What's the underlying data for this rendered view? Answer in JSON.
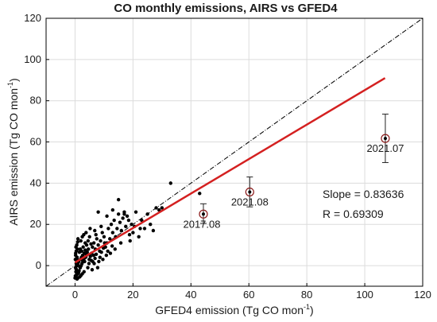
{
  "chart_data": {
    "type": "scatter",
    "title": "CO monthly emissions, AIRS vs GFED4",
    "xlabel": "GFED4 emission (Tg CO mon",
    "ylabel": "AIRS emission (Tg CO mon",
    "label_exponent": "-1",
    "label_close": ")",
    "xlim": [
      -10,
      120
    ],
    "ylim": [
      -10,
      120
    ],
    "xticks": [
      0,
      20,
      40,
      60,
      80,
      100,
      120
    ],
    "yticks": [
      0,
      20,
      40,
      60,
      80,
      100,
      120
    ],
    "grid": true,
    "one_to_one_line": {
      "from": [
        -10,
        -10
      ],
      "to": [
        120,
        120
      ],
      "color": "#000000",
      "style": "dash-dot"
    },
    "regression_line": {
      "from": [
        0,
        1.5
      ],
      "to": [
        107,
        91
      ],
      "color": "#d42020",
      "slope": 0.83636,
      "r": 0.69309
    },
    "stats_text": [
      "Slope = 0.83636",
      "R = 0.69309"
    ],
    "points_color": "#000000",
    "points": [
      [
        0.1,
        -5
      ],
      [
        0.3,
        -3
      ],
      [
        0.5,
        -2
      ],
      [
        0.2,
        -1
      ],
      [
        0.6,
        0
      ],
      [
        0.4,
        1
      ],
      [
        0.8,
        2
      ],
      [
        0.1,
        3
      ],
      [
        0.7,
        4
      ],
      [
        0.2,
        5
      ],
      [
        0.9,
        -4
      ],
      [
        0.5,
        -4.5
      ],
      [
        1.2,
        -3.5
      ],
      [
        1.4,
        -2.5
      ],
      [
        0.3,
        -1.5
      ],
      [
        1.6,
        -0.5
      ],
      [
        0.9,
        0.5
      ],
      [
        1.1,
        1.5
      ],
      [
        1.3,
        2.5
      ],
      [
        0.6,
        3.5
      ],
      [
        1.8,
        -1
      ],
      [
        2.1,
        0
      ],
      [
        2.4,
        1
      ],
      [
        2.7,
        2
      ],
      [
        1.9,
        3
      ],
      [
        2.2,
        4
      ],
      [
        2.6,
        5
      ],
      [
        3.0,
        3
      ],
      [
        3.3,
        2
      ],
      [
        3.6,
        4
      ],
      [
        0.2,
        6
      ],
      [
        0.4,
        7
      ],
      [
        0.8,
        8
      ],
      [
        0.3,
        9
      ],
      [
        0.6,
        10
      ],
      [
        0.9,
        11.5
      ],
      [
        1.5,
        6.5
      ],
      [
        1.8,
        8
      ],
      [
        2.3,
        7
      ],
      [
        2.8,
        9
      ],
      [
        3.2,
        6
      ],
      [
        3.5,
        7.5
      ],
      [
        3.9,
        5
      ],
      [
        4.2,
        6.5
      ],
      [
        4.6,
        8
      ],
      [
        4.9,
        3
      ],
      [
        5.3,
        4.5
      ],
      [
        5.7,
        6
      ],
      [
        6.1,
        2
      ],
      [
        6.4,
        5
      ],
      [
        4.0,
        10
      ],
      [
        4.5,
        12
      ],
      [
        5.0,
        14
      ],
      [
        5.5,
        10.5
      ],
      [
        6.0,
        9
      ],
      [
        6.5,
        11
      ],
      [
        7.0,
        8
      ],
      [
        7.5,
        13
      ],
      [
        8.0,
        10
      ],
      [
        8.5,
        7
      ],
      [
        2.0,
        12
      ],
      [
        2.5,
        14
      ],
      [
        3.0,
        15
      ],
      [
        3.5,
        11
      ],
      [
        1.0,
        13
      ],
      [
        7.2,
        15
      ],
      [
        8.8,
        12
      ],
      [
        9.4,
        16
      ],
      [
        10.0,
        14
      ],
      [
        10.5,
        9
      ],
      [
        11.0,
        11
      ],
      [
        11.5,
        18
      ],
      [
        12.0,
        13
      ],
      [
        12.5,
        20
      ],
      [
        13.0,
        16
      ],
      [
        13.5,
        22
      ],
      [
        14.0,
        14
      ],
      [
        14.5,
        18
      ],
      [
        15.0,
        25
      ],
      [
        15.5,
        21
      ],
      [
        16.0,
        17
      ],
      [
        16.5,
        23
      ],
      [
        17.0,
        26
      ],
      [
        17.5,
        19
      ],
      [
        18.0,
        24
      ],
      [
        18.5,
        22
      ],
      [
        19.0,
        12
      ],
      [
        19.5,
        20
      ],
      [
        20.0,
        16
      ],
      [
        21.0,
        26
      ],
      [
        22.0,
        14
      ],
      [
        23.0,
        22
      ],
      [
        24.0,
        18
      ],
      [
        25.0,
        25
      ],
      [
        26.0,
        20
      ],
      [
        27.0,
        17
      ],
      [
        28.0,
        28
      ],
      [
        29.0,
        27
      ],
      [
        30.0,
        28
      ],
      [
        33.0,
        40
      ],
      [
        43.0,
        35
      ],
      [
        8.0,
        26
      ],
      [
        11.0,
        24
      ],
      [
        13.0,
        27
      ],
      [
        15.0,
        32
      ],
      [
        17.0,
        25
      ],
      [
        9.0,
        19
      ],
      [
        6.8,
        17
      ],
      [
        5.2,
        18
      ],
      [
        3.8,
        16
      ],
      [
        10.8,
        5
      ],
      [
        12.2,
        6
      ],
      [
        9.6,
        3
      ],
      [
        8.2,
        2
      ],
      [
        7.8,
        -1
      ],
      [
        6.6,
        1
      ],
      [
        5.9,
        -2
      ],
      [
        4.4,
        -1
      ],
      [
        3.1,
        -3
      ],
      [
        2.5,
        -4
      ],
      [
        1.0,
        -6
      ],
      [
        1.6,
        -5.5
      ],
      [
        2.0,
        -4.8
      ],
      [
        0.0,
        -6
      ],
      [
        0.7,
        -6.5
      ],
      [
        13.8,
        8
      ],
      [
        15.8,
        11
      ],
      [
        18.8,
        15
      ],
      [
        20.5,
        19
      ],
      [
        22.5,
        18
      ],
      [
        4.8,
        1
      ],
      [
        5.6,
        2.5
      ],
      [
        6.9,
        3.5
      ],
      [
        7.3,
        5.5
      ],
      [
        8.6,
        4
      ],
      [
        9.1,
        6.5
      ],
      [
        9.8,
        8.5
      ],
      [
        10.2,
        11
      ],
      [
        11.3,
        7
      ],
      [
        12.8,
        9.5
      ]
    ],
    "highlighted": [
      {
        "label": "2017.08",
        "x": 44.3,
        "y": 25.0,
        "err": [
          20.5,
          30.0
        ],
        "label_pos": "below-left"
      },
      {
        "label": "2021.08",
        "x": 60.3,
        "y": 35.7,
        "err": [
          28.5,
          43.0
        ],
        "label_pos": "below"
      },
      {
        "label": "2021.07",
        "x": 107.1,
        "y": 61.7,
        "err": [
          50.0,
          73.5
        ],
        "label_pos": "below"
      }
    ],
    "highlight_color": "#8b1a1a"
  }
}
